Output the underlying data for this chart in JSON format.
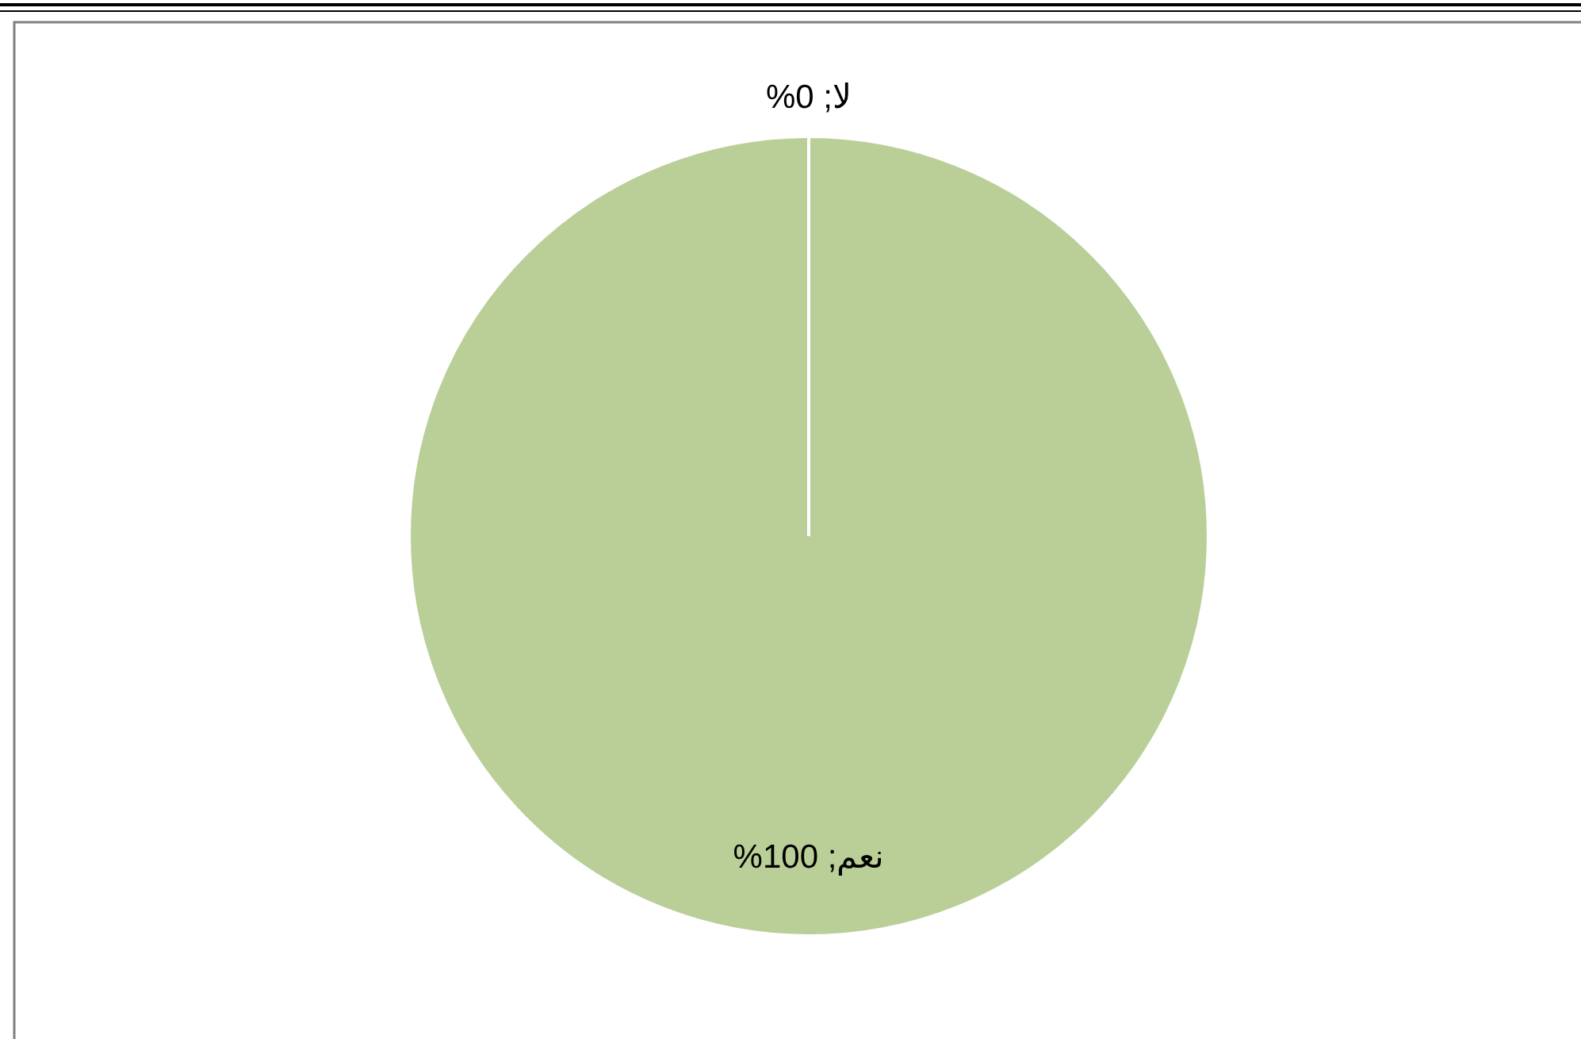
{
  "chart_data": {
    "type": "pie",
    "categories": [
      "لا",
      "نعم"
    ],
    "values": [
      0,
      100
    ],
    "colors": [
      "#4f81bd",
      "#bacf98"
    ],
    "value_labels": [
      "; 0%",
      "; 100%"
    ]
  }
}
